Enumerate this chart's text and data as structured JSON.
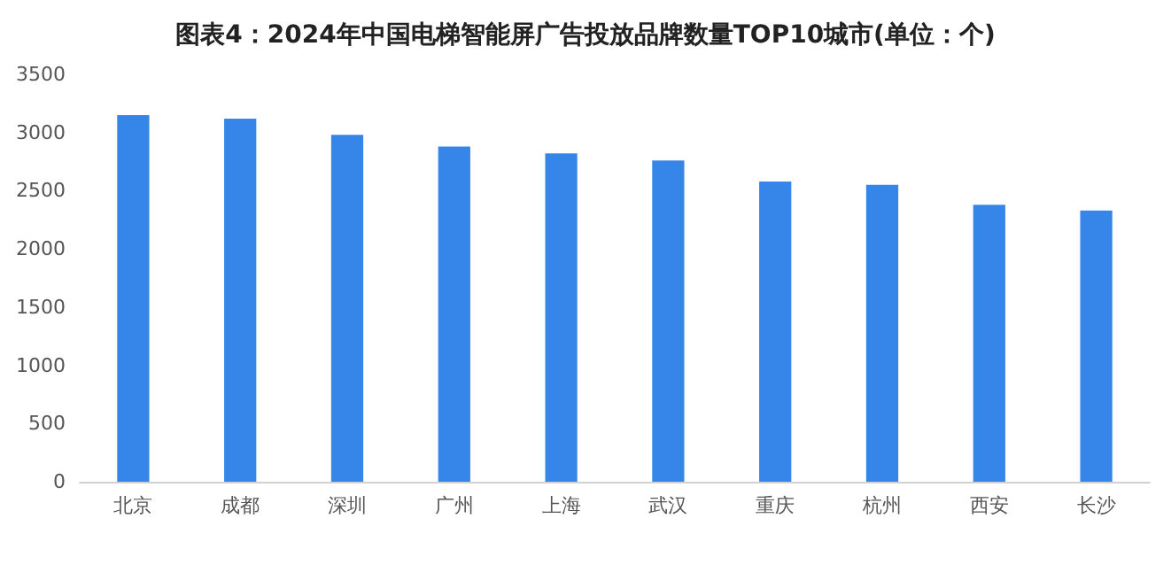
{
  "chart_data": {
    "type": "bar",
    "title": "图表4：2024年中国电梯智能屏广告投放品牌数量TOP10城市(单位：个)",
    "categories": [
      "北京",
      "成都",
      "深圳",
      "广州",
      "上海",
      "武汉",
      "重庆",
      "杭州",
      "西安",
      "长沙"
    ],
    "values": [
      3150,
      3120,
      2980,
      2880,
      2820,
      2760,
      2580,
      2550,
      2380,
      2330
    ],
    "color": "#3685e8",
    "ylim": [
      0,
      3500
    ],
    "yticks": [
      0,
      500,
      1000,
      1500,
      2000,
      2500,
      3000,
      3500
    ],
    "grid": false
  }
}
